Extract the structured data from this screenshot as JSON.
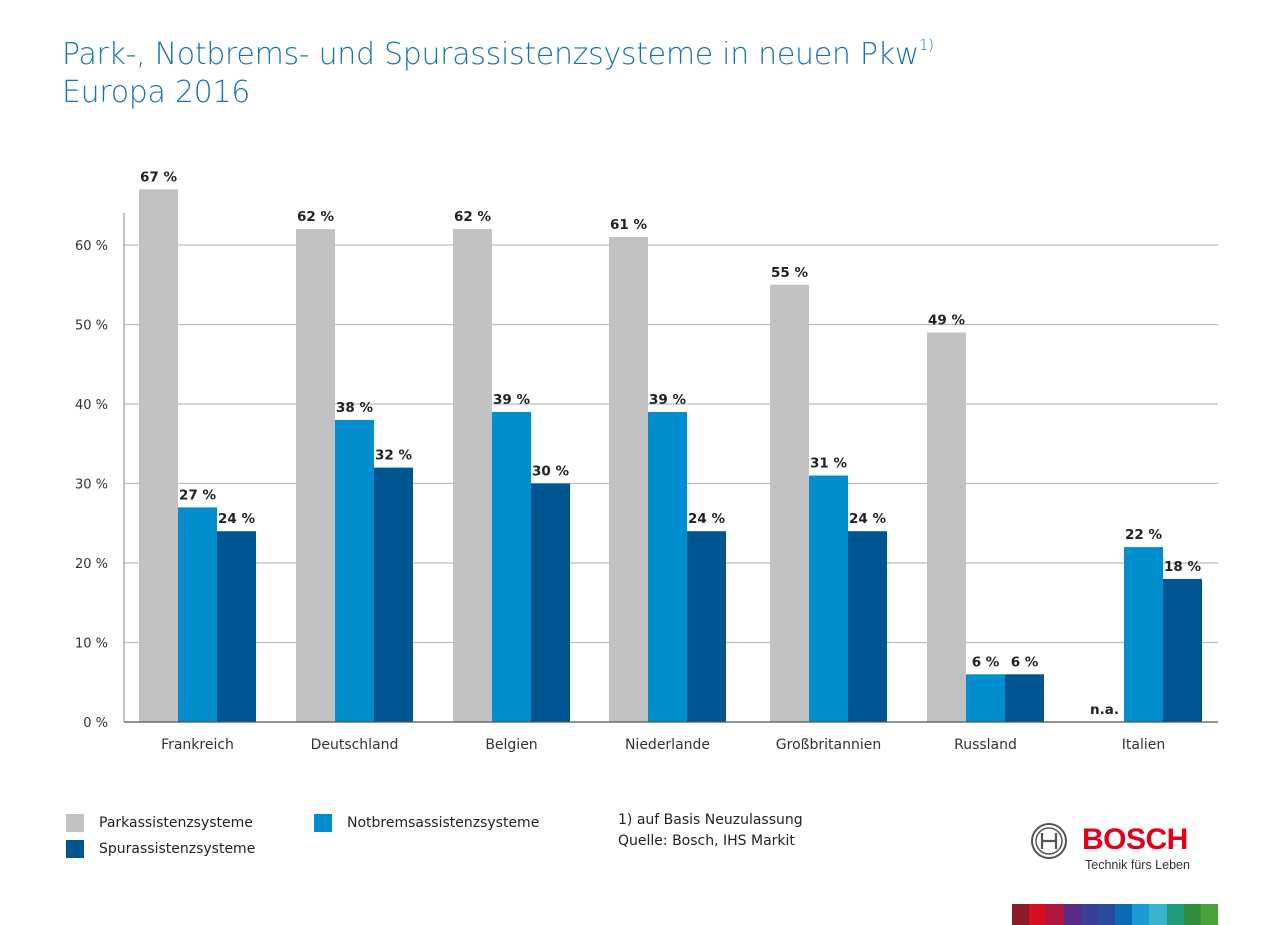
{
  "title": {
    "line1": "Park-, Notbrems- und Spurassistenzsysteme in neuen Pkw",
    "line1_sup": "1)",
    "line2": "Europa 2016"
  },
  "chart_data": {
    "type": "bar",
    "categories": [
      "Frankreich",
      "Deutschland",
      "Belgien",
      "Niederlande",
      "Großbritannien",
      "Russland",
      "Italien"
    ],
    "series": [
      {
        "name": "Parkassistenzsysteme",
        "color": "#c1c2c4",
        "values": [
          67,
          62,
          62,
          61,
          55,
          49,
          null
        ],
        "labels": [
          "67 %",
          "62 %",
          "62 %",
          "61 %",
          "55 %",
          "49 %",
          "n.a."
        ]
      },
      {
        "name": "Notbremsassistenzsysteme",
        "color": "#008ecf",
        "values": [
          27,
          38,
          39,
          39,
          31,
          6,
          22
        ],
        "labels": [
          "27 %",
          "38 %",
          "39 %",
          "39 %",
          "31 %",
          "6 %",
          "22 %"
        ]
      },
      {
        "name": "Spurassistenzsysteme",
        "color": "#005691",
        "values": [
          24,
          32,
          30,
          24,
          24,
          6,
          18
        ],
        "labels": [
          "24 %",
          "32 %",
          "30 %",
          "24 %",
          "24 %",
          "6 %",
          "18 %"
        ]
      }
    ],
    "yticks": [
      0,
      10,
      20,
      30,
      40,
      50,
      60
    ],
    "ytick_labels": [
      "0 %",
      "10 %",
      "20 %",
      "30 %",
      "40 %",
      "50 %",
      "60 %"
    ],
    "ylim": [
      0,
      67
    ],
    "grid": true,
    "legend_position": "bottom-left"
  },
  "legend": {
    "park": "Parkassistenzsysteme",
    "notbrems": "Notbremsassistenzsysteme",
    "spur": "Spurassistenzsysteme"
  },
  "notes": {
    "footnote": "1) auf Basis Neuzulassung",
    "source": "Quelle: Bosch, IHS Markit"
  },
  "logo": {
    "wordmark": "BOSCH",
    "tagline": "Technik fürs Leben"
  },
  "colors": {
    "title": "#1a74a8",
    "park": "#c1c2c4",
    "notbrems": "#008ecf",
    "spur": "#005691",
    "brand_red": "#e2001a"
  }
}
